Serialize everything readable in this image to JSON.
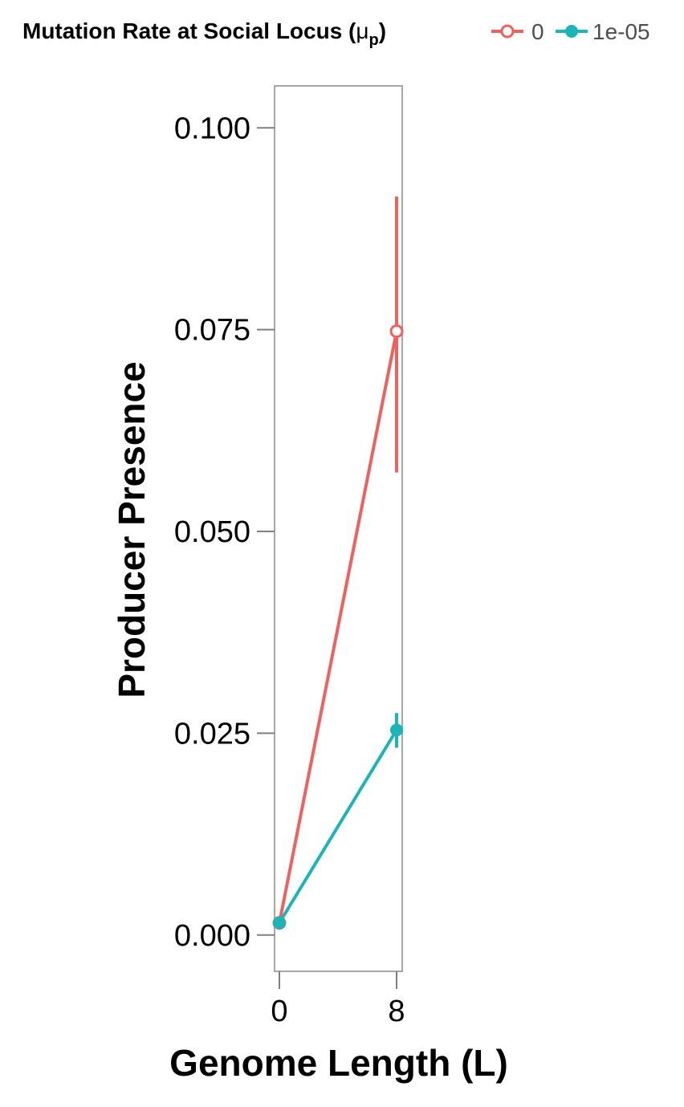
{
  "chart_data": {
    "type": "line",
    "xlabel": "Genome Length (L)",
    "ylabel": "Producer Presence",
    "x": [
      "0",
      "8"
    ],
    "y_ticks": [
      "0.000",
      "0.025",
      "0.050",
      "0.075",
      "0.100"
    ],
    "ylim": [
      -0.0045,
      0.1052
    ],
    "grid": false,
    "legend": {
      "title_main": "Mutation Rate at Social Locus (",
      "title_symbol": "μ",
      "title_subscript": "p",
      "title_end": ")",
      "position": "top"
    },
    "series": [
      {
        "name": "0",
        "color": "#F0605C",
        "marker": "open-circle",
        "values": [
          0.0015,
          0.0748
        ],
        "error_low": [
          0.0015,
          0.0573
        ],
        "error_high": [
          0.0015,
          0.0915
        ]
      },
      {
        "name": "1e-05",
        "color": "#1BB5B8",
        "marker": "filled-circle",
        "values": [
          0.0015,
          0.0254
        ],
        "error_low": [
          0.0015,
          0.0232
        ],
        "error_high": [
          0.0015,
          0.0275
        ]
      }
    ]
  }
}
